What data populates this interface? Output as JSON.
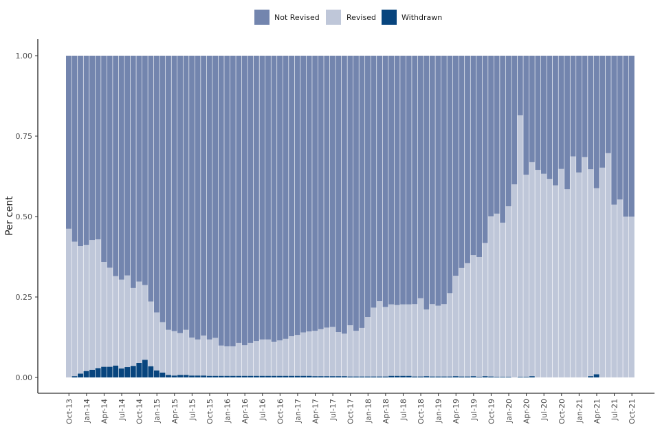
{
  "chart_data": {
    "type": "bar",
    "stacked": true,
    "ylabel": "Per cent",
    "xlabel": "",
    "ylim": [
      0,
      1
    ],
    "yticks": [
      "0.00",
      "0.25",
      "0.50",
      "0.75",
      "1.00"
    ],
    "legend_position": "top",
    "categories": [
      "Oct-13",
      "Nov-13",
      "Dec-13",
      "Jan-14",
      "Feb-14",
      "Mar-14",
      "Apr-14",
      "May-14",
      "Jun-14",
      "Jul-14",
      "Aug-14",
      "Sep-14",
      "Oct-14",
      "Nov-14",
      "Dec-14",
      "Jan-15",
      "Feb-15",
      "Mar-15",
      "Apr-15",
      "May-15",
      "Jun-15",
      "Jul-15",
      "Aug-15",
      "Sep-15",
      "Oct-15",
      "Nov-15",
      "Dec-15",
      "Jan-16",
      "Feb-16",
      "Mar-16",
      "Apr-16",
      "May-16",
      "Jun-16",
      "Jul-16",
      "Aug-16",
      "Sep-16",
      "Oct-16",
      "Nov-16",
      "Dec-16",
      "Jan-17",
      "Feb-17",
      "Mar-17",
      "Apr-17",
      "May-17",
      "Jun-17",
      "Jul-17",
      "Aug-17",
      "Sep-17",
      "Oct-17",
      "Nov-17",
      "Dec-17",
      "Jan-18",
      "Feb-18",
      "Mar-18",
      "Apr-18",
      "May-18",
      "Jun-18",
      "Jul-18",
      "Aug-18",
      "Sep-18",
      "Oct-18",
      "Nov-18",
      "Dec-18",
      "Jan-19",
      "Feb-19",
      "Mar-19",
      "Apr-19",
      "May-19",
      "Jun-19",
      "Jul-19",
      "Aug-19",
      "Sep-19",
      "Oct-19",
      "Nov-19",
      "Dec-19",
      "Jan-20",
      "Feb-20",
      "Mar-20",
      "Apr-20",
      "May-20",
      "Jun-20",
      "Jul-20",
      "Aug-20",
      "Sep-20",
      "Oct-20",
      "Nov-20",
      "Dec-20",
      "Jan-21",
      "Feb-21",
      "Mar-21",
      "Apr-21",
      "May-21",
      "Jun-21",
      "Jul-21",
      "Aug-21",
      "Sep-21",
      "Oct-21"
    ],
    "xtick_labels": [
      "Oct-13",
      "Jan-14",
      "Apr-14",
      "Jul-14",
      "Oct-14",
      "Jan-15",
      "Apr-15",
      "Jul-15",
      "Oct-15",
      "Jan-16",
      "Apr-16",
      "Jul-16",
      "Oct-16",
      "Jan-17",
      "Apr-17",
      "Jul-17",
      "Oct-17",
      "Jan-18",
      "Apr-18",
      "Jul-18",
      "Oct-18",
      "Jan-19",
      "Apr-19",
      "Jul-19",
      "Oct-19",
      "Jan-20",
      "Apr-20",
      "Jul-20",
      "Oct-20",
      "Jan-21",
      "Apr-21",
      "Jul-21",
      "Oct-21"
    ],
    "series": [
      {
        "name": "Withdrawn",
        "color": "#08457e",
        "values": [
          0.0,
          0.004,
          0.012,
          0.02,
          0.024,
          0.029,
          0.033,
          0.033,
          0.037,
          0.028,
          0.032,
          0.036,
          0.045,
          0.055,
          0.035,
          0.022,
          0.015,
          0.008,
          0.006,
          0.008,
          0.008,
          0.006,
          0.006,
          0.006,
          0.005,
          0.005,
          0.005,
          0.005,
          0.005,
          0.005,
          0.005,
          0.005,
          0.005,
          0.005,
          0.005,
          0.005,
          0.005,
          0.005,
          0.005,
          0.005,
          0.005,
          0.005,
          0.004,
          0.004,
          0.004,
          0.004,
          0.004,
          0.004,
          0.003,
          0.003,
          0.003,
          0.003,
          0.003,
          0.003,
          0.003,
          0.005,
          0.005,
          0.005,
          0.005,
          0.003,
          0.003,
          0.004,
          0.003,
          0.003,
          0.003,
          0.003,
          0.004,
          0.003,
          0.003,
          0.004,
          0.002,
          0.004,
          0.003,
          0.002,
          0.002,
          0.002,
          0.0,
          0.002,
          0.002,
          0.004,
          0.0,
          0.0,
          0.0,
          0.0,
          0.0,
          0.0,
          0.0,
          0.0,
          0.0,
          0.004,
          0.01,
          0.0,
          0.0,
          0.0,
          0.0,
          0.0,
          0.0
        ]
      },
      {
        "name": "Revised",
        "color": "#bfc7d9",
        "values": [
          0.462,
          0.418,
          0.396,
          0.392,
          0.403,
          0.4,
          0.326,
          0.308,
          0.278,
          0.276,
          0.285,
          0.242,
          0.253,
          0.232,
          0.201,
          0.18,
          0.157,
          0.14,
          0.138,
          0.13,
          0.14,
          0.118,
          0.112,
          0.124,
          0.113,
          0.118,
          0.094,
          0.092,
          0.092,
          0.102,
          0.095,
          0.102,
          0.108,
          0.113,
          0.113,
          0.106,
          0.11,
          0.115,
          0.123,
          0.127,
          0.135,
          0.138,
          0.141,
          0.146,
          0.151,
          0.153,
          0.137,
          0.132,
          0.159,
          0.142,
          0.151,
          0.185,
          0.214,
          0.234,
          0.216,
          0.222,
          0.22,
          0.222,
          0.222,
          0.225,
          0.243,
          0.207,
          0.225,
          0.22,
          0.225,
          0.259,
          0.312,
          0.337,
          0.352,
          0.376,
          0.372,
          0.414,
          0.498,
          0.507,
          0.479,
          0.53,
          0.6,
          0.813,
          0.628,
          0.665,
          0.645,
          0.633,
          0.617,
          0.597,
          0.648,
          0.585,
          0.687,
          0.637,
          0.685,
          0.643,
          0.578,
          0.652,
          0.697,
          0.537,
          0.553,
          0.5,
          0.5
        ]
      },
      {
        "name": "Not Revised",
        "color": "#7385ae",
        "values": [
          0.538,
          0.578,
          0.592,
          0.588,
          0.573,
          0.571,
          0.641,
          0.659,
          0.685,
          0.696,
          0.683,
          0.722,
          0.702,
          0.713,
          0.764,
          0.798,
          0.828,
          0.852,
          0.856,
          0.862,
          0.852,
          0.876,
          0.882,
          0.87,
          0.882,
          0.877,
          0.901,
          0.903,
          0.903,
          0.893,
          0.9,
          0.893,
          0.887,
          0.882,
          0.882,
          0.889,
          0.885,
          0.88,
          0.872,
          0.868,
          0.86,
          0.857,
          0.855,
          0.85,
          0.845,
          0.843,
          0.859,
          0.864,
          0.838,
          0.855,
          0.846,
          0.812,
          0.783,
          0.763,
          0.781,
          0.773,
          0.775,
          0.773,
          0.773,
          0.772,
          0.754,
          0.789,
          0.772,
          0.777,
          0.772,
          0.738,
          0.684,
          0.66,
          0.645,
          0.62,
          0.626,
          0.582,
          0.499,
          0.491,
          0.519,
          0.468,
          0.4,
          0.185,
          0.37,
          0.331,
          0.355,
          0.367,
          0.383,
          0.403,
          0.352,
          0.415,
          0.313,
          0.363,
          0.315,
          0.353,
          0.412,
          0.348,
          0.303,
          0.463,
          0.447,
          0.5,
          0.5
        ]
      }
    ],
    "legend": [
      "Not Revised",
      "Revised",
      "Withdrawn"
    ]
  }
}
